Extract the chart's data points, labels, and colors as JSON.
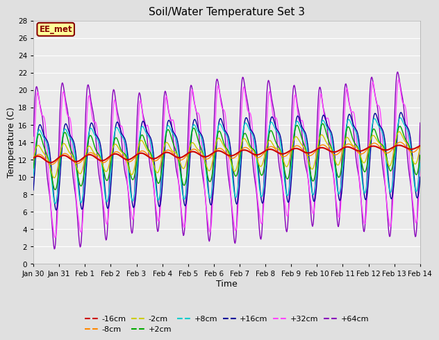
{
  "title": "Soil/Water Temperature Set 3",
  "xlabel": "Time",
  "ylabel": "Temperature (C)",
  "ylim": [
    0,
    28
  ],
  "yticks": [
    0,
    2,
    4,
    6,
    8,
    10,
    12,
    14,
    16,
    18,
    20,
    22,
    24,
    26,
    28
  ],
  "bg_color": "#e0e0e0",
  "plot_bg": "#ebebeb",
  "annotation_text": "EE_met",
  "annotation_bg": "#ffff99",
  "annotation_border": "#880000",
  "series_colors": {
    "-16cm": "#cc0000",
    "-8cm": "#ff8800",
    "-2cm": "#cccc00",
    "+2cm": "#00aa00",
    "+8cm": "#00cccc",
    "+16cm": "#000099",
    "+32cm": "#ff44ff",
    "+64cm": "#8800bb"
  },
  "legend_order": [
    "-16cm",
    "-8cm",
    "-2cm",
    "+2cm",
    "+8cm",
    "+16cm",
    "+32cm",
    "+64cm"
  ],
  "num_points": 720
}
